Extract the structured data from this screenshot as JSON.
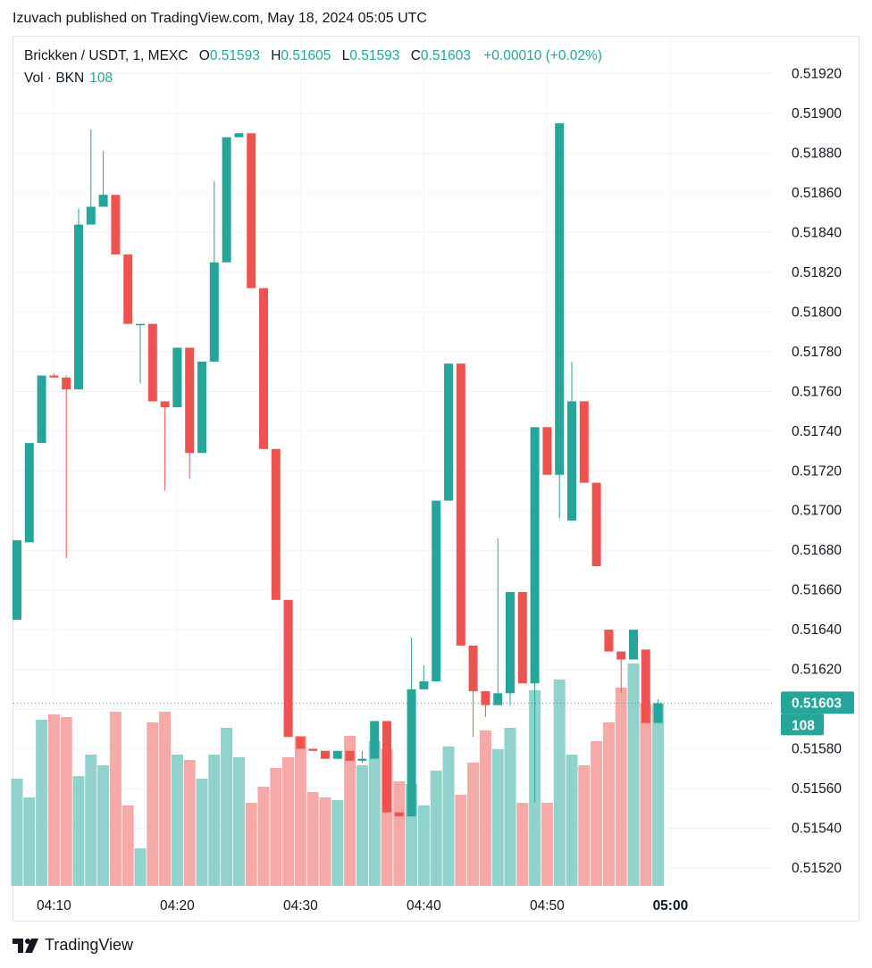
{
  "header": {
    "publish_line": "Izuvach published on TradingView.com, May 18, 2024 05:05 UTC"
  },
  "legend": {
    "symbol": "Brickken / USDT, 1, MEXC",
    "open_label": "O",
    "open_value": "0.51593",
    "high_label": "H",
    "high_value": "0.51605",
    "low_label": "L",
    "low_value": "0.51593",
    "close_label": "C",
    "close_value": "0.51603",
    "change": "+0.00010 (+0.02%)"
  },
  "volume_legend": {
    "label": "Vol · BKN",
    "value": "108"
  },
  "footer": {
    "brand": "TradingView"
  },
  "colors": {
    "up": "#26a69a",
    "down": "#ef5350",
    "up_volume": "#92d2cc",
    "down_volume": "#f7a9a7",
    "grid": "#f0f3fa",
    "text": "#131722"
  },
  "chart_data": {
    "type": "candlestick",
    "timeframe": "1 minute",
    "ylim": [
      0.5151,
      0.5193
    ],
    "y_ticks": [
      "0.51520",
      "0.51540",
      "0.51560",
      "0.51580",
      "0.51600",
      "0.51620",
      "0.51640",
      "0.51660",
      "0.51680",
      "0.51700",
      "0.51720",
      "0.51740",
      "0.51760",
      "0.51780",
      "0.51800",
      "0.51820",
      "0.51840",
      "0.51860",
      "0.51880",
      "0.51900",
      "0.51920"
    ],
    "x_ticks": [
      {
        "label": "04:10",
        "index": 3
      },
      {
        "label": "04:20",
        "index": 13
      },
      {
        "label": "04:30",
        "index": 23
      },
      {
        "label": "04:40",
        "index": 33
      },
      {
        "label": "04:50",
        "index": 43
      },
      {
        "label": "05:00",
        "index": 53
      }
    ],
    "last_price": "0.51603",
    "last_volume": "108",
    "candles": [
      {
        "o": 0.51645,
        "h": 0.51685,
        "l": 0.51645,
        "c": 0.51685,
        "v": 0.4
      },
      {
        "o": 0.51684,
        "h": 0.51734,
        "l": 0.51684,
        "c": 0.51734,
        "v": 0.33
      },
      {
        "o": 0.51734,
        "h": 0.51768,
        "l": 0.51734,
        "c": 0.51768,
        "v": 0.62
      },
      {
        "o": 0.51768,
        "h": 0.51769,
        "l": 0.51767,
        "c": 0.51767,
        "v": 0.64
      },
      {
        "o": 0.51767,
        "h": 0.51768,
        "l": 0.51676,
        "c": 0.51761,
        "v": 0.63
      },
      {
        "o": 0.51761,
        "h": 0.51852,
        "l": 0.51761,
        "c": 0.51844,
        "v": 0.41
      },
      {
        "o": 0.51844,
        "h": 0.51892,
        "l": 0.51844,
        "c": 0.51853,
        "v": 0.49
      },
      {
        "o": 0.51853,
        "h": 0.51881,
        "l": 0.51853,
        "c": 0.51859,
        "v": 0.45
      },
      {
        "o": 0.51859,
        "h": 0.51859,
        "l": 0.51829,
        "c": 0.51829,
        "v": 0.65
      },
      {
        "o": 0.51829,
        "h": 0.51829,
        "l": 0.51794,
        "c": 0.51794,
        "v": 0.3
      },
      {
        "o": 0.51794,
        "h": 0.51794,
        "l": 0.51764,
        "c": 0.51794,
        "v": 0.14
      },
      {
        "o": 0.51794,
        "h": 0.51794,
        "l": 0.51755,
        "c": 0.51755,
        "v": 0.61
      },
      {
        "o": 0.51755,
        "h": 0.51755,
        "l": 0.5171,
        "c": 0.51752,
        "v": 0.65
      },
      {
        "o": 0.51752,
        "h": 0.51782,
        "l": 0.51752,
        "c": 0.51782,
        "v": 0.49
      },
      {
        "o": 0.51782,
        "h": 0.51782,
        "l": 0.51716,
        "c": 0.51729,
        "v": 0.47
      },
      {
        "o": 0.51729,
        "h": 0.51775,
        "l": 0.51729,
        "c": 0.51775,
        "v": 0.4
      },
      {
        "o": 0.51775,
        "h": 0.51866,
        "l": 0.51775,
        "c": 0.51825,
        "v": 0.49
      },
      {
        "o": 0.51825,
        "h": 0.51888,
        "l": 0.51825,
        "c": 0.51888,
        "v": 0.59
      },
      {
        "o": 0.51888,
        "h": 0.5189,
        "l": 0.51888,
        "c": 0.5189,
        "v": 0.48
      },
      {
        "o": 0.5189,
        "h": 0.5189,
        "l": 0.51812,
        "c": 0.51812,
        "v": 0.31
      },
      {
        "o": 0.51812,
        "h": 0.51812,
        "l": 0.51731,
        "c": 0.51731,
        "v": 0.37
      },
      {
        "o": 0.51731,
        "h": 0.51731,
        "l": 0.51655,
        "c": 0.51655,
        "v": 0.44
      },
      {
        "o": 0.51655,
        "h": 0.51655,
        "l": 0.51586,
        "c": 0.51586,
        "v": 0.48
      },
      {
        "o": 0.51586,
        "h": 0.51586,
        "l": 0.5158,
        "c": 0.5158,
        "v": 0.56
      },
      {
        "o": 0.5158,
        "h": 0.5158,
        "l": 0.51579,
        "c": 0.51579,
        "v": 0.35
      },
      {
        "o": 0.51579,
        "h": 0.51579,
        "l": 0.51575,
        "c": 0.51575,
        "v": 0.33
      },
      {
        "o": 0.51575,
        "h": 0.51579,
        "l": 0.51575,
        "c": 0.51579,
        "v": 0.32
      },
      {
        "o": 0.51579,
        "h": 0.51579,
        "l": 0.51574,
        "c": 0.51574,
        "v": 0.56
      },
      {
        "o": 0.51574,
        "h": 0.51579,
        "l": 0.51573,
        "c": 0.51575,
        "v": 0.45
      },
      {
        "o": 0.51575,
        "h": 0.51594,
        "l": 0.51575,
        "c": 0.51594,
        "v": 0.54
      },
      {
        "o": 0.51594,
        "h": 0.51594,
        "l": 0.51548,
        "c": 0.51548,
        "v": 0.51
      },
      {
        "o": 0.51548,
        "h": 0.51548,
        "l": 0.51546,
        "c": 0.51546,
        "v": 0.39
      },
      {
        "o": 0.51546,
        "h": 0.51636,
        "l": 0.51546,
        "c": 0.5161,
        "v": 0.38
      },
      {
        "o": 0.5161,
        "h": 0.51622,
        "l": 0.5161,
        "c": 0.51614,
        "v": 0.3
      },
      {
        "o": 0.51614,
        "h": 0.51705,
        "l": 0.51614,
        "c": 0.51705,
        "v": 0.43
      },
      {
        "o": 0.51705,
        "h": 0.51774,
        "l": 0.51705,
        "c": 0.51774,
        "v": 0.52
      },
      {
        "o": 0.51774,
        "h": 0.51774,
        "l": 0.51632,
        "c": 0.51632,
        "v": 0.34
      },
      {
        "o": 0.51632,
        "h": 0.51632,
        "l": 0.51586,
        "c": 0.51609,
        "v": 0.46
      },
      {
        "o": 0.51609,
        "h": 0.51609,
        "l": 0.51596,
        "c": 0.51602,
        "v": 0.58
      },
      {
        "o": 0.51602,
        "h": 0.51686,
        "l": 0.51602,
        "c": 0.51608,
        "v": 0.51
      },
      {
        "o": 0.51608,
        "h": 0.51659,
        "l": 0.51602,
        "c": 0.51659,
        "v": 0.59
      },
      {
        "o": 0.51659,
        "h": 0.51659,
        "l": 0.51613,
        "c": 0.51613,
        "v": 0.31
      },
      {
        "o": 0.51613,
        "h": 0.51742,
        "l": 0.51553,
        "c": 0.51742,
        "v": 0.73
      },
      {
        "o": 0.51742,
        "h": 0.51742,
        "l": 0.51718,
        "c": 0.51718,
        "v": 0.31
      },
      {
        "o": 0.51718,
        "h": 0.51895,
        "l": 0.51696,
        "c": 0.51895,
        "v": 0.77
      },
      {
        "o": 0.51695,
        "h": 0.51775,
        "l": 0.51695,
        "c": 0.51755,
        "v": 0.49
      },
      {
        "o": 0.51755,
        "h": 0.51755,
        "l": 0.51714,
        "c": 0.51714,
        "v": 0.45
      },
      {
        "o": 0.51714,
        "h": 0.51714,
        "l": 0.51672,
        "c": 0.51672,
        "v": 0.54
      },
      {
        "o": 0.5164,
        "h": 0.5164,
        "l": 0.51629,
        "c": 0.51629,
        "v": 0.61
      },
      {
        "o": 0.51629,
        "h": 0.51629,
        "l": 0.51608,
        "c": 0.51625,
        "v": 0.74
      },
      {
        "o": 0.51625,
        "h": 0.5164,
        "l": 0.51625,
        "c": 0.5164,
        "v": 0.83
      },
      {
        "o": 0.5163,
        "h": 0.5163,
        "l": 0.51593,
        "c": 0.51593,
        "v": 0.68
      },
      {
        "o": 0.51593,
        "h": 0.51605,
        "l": 0.51593,
        "c": 0.51603,
        "v": 0.68
      }
    ]
  }
}
